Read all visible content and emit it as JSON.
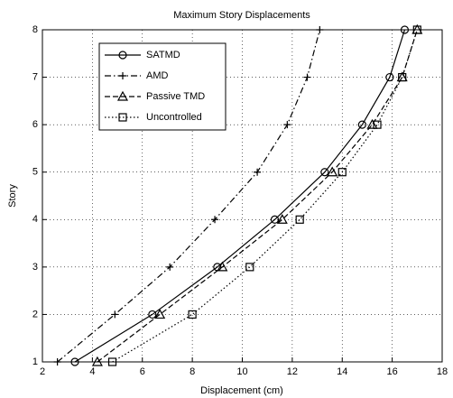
{
  "chart_data": {
    "type": "line",
    "title": "Maximum Story Displacements",
    "x_label": "Displacement (cm)",
    "y_label": "Story",
    "xlim": [
      2,
      18
    ],
    "xticks": [
      2,
      4,
      6,
      8,
      10,
      12,
      14,
      16,
      18
    ],
    "ylim": [
      1,
      8
    ],
    "yticks": [
      1,
      2,
      3,
      4,
      5,
      6,
      7,
      8
    ],
    "grid": true,
    "legend": "upper left",
    "series": [
      {
        "name": "SATMD",
        "color": "#000000",
        "marker": "circle",
        "dash": "solid",
        "x": [
          3.3,
          6.4,
          9.0,
          11.3,
          13.3,
          14.8,
          15.9,
          16.5
        ],
        "values": [
          1,
          2,
          3,
          4,
          5,
          6,
          7,
          8
        ]
      },
      {
        "name": "AMD",
        "color": "#000000",
        "marker": "plus",
        "dash": "dashdot",
        "x": [
          2.6,
          4.9,
          7.1,
          8.9,
          10.6,
          11.8,
          12.6,
          13.1
        ],
        "values": [
          1,
          2,
          3,
          4,
          5,
          6,
          7,
          8
        ]
      },
      {
        "name": "Passive TMD",
        "color": "#000000",
        "marker": "triangle",
        "dash": "dashed",
        "x": [
          4.2,
          6.7,
          9.2,
          11.6,
          13.6,
          15.2,
          16.4,
          17.0
        ],
        "values": [
          1,
          2,
          3,
          4,
          5,
          6,
          7,
          8
        ]
      },
      {
        "name": "Uncontrolled",
        "color": "#000000",
        "marker": "square",
        "dash": "dotted",
        "x": [
          4.8,
          8.0,
          10.3,
          12.3,
          14.0,
          15.4,
          16.4,
          17.0
        ],
        "values": [
          1,
          2,
          3,
          4,
          5,
          6,
          7,
          8
        ]
      }
    ]
  }
}
